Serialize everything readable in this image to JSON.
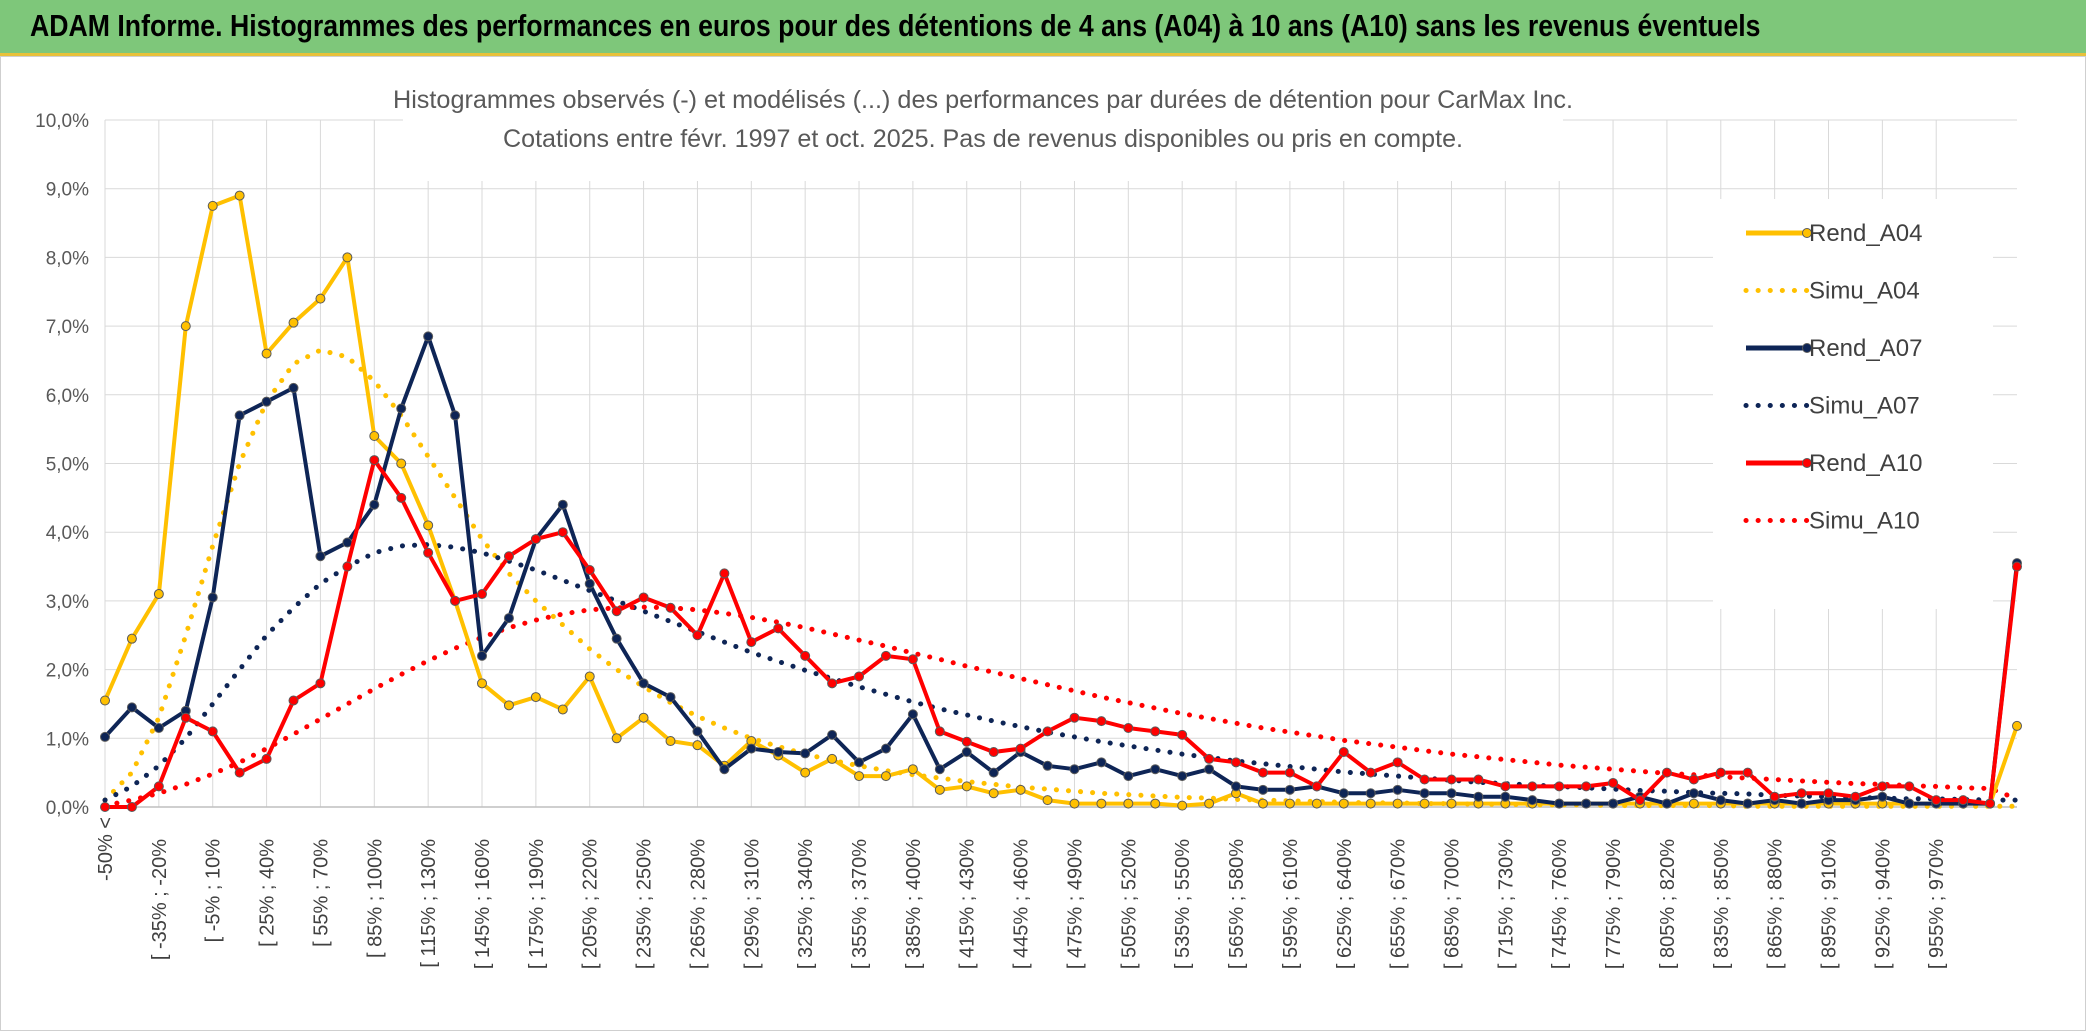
{
  "banner": {
    "title": "ADAM Informe. Histogrammes des performances en euros pour des détentions de 4 ans (A04) à 10 ans (A10) sans les revenus éventuels"
  },
  "colors": {
    "banner_bg": "#7ec77a",
    "A04": "#ffc000",
    "A07": "#0e2556",
    "A10": "#ff0000",
    "grid": "#d9d9d9"
  },
  "chart_data": {
    "type": "line",
    "title": "Histogrammes observés (-) et modélisés (...) des performances par durées de détention pour CarMax Inc.",
    "subtitle": "Cotations entre févr. 1997 et oct. 2025. Pas de revenus disponibles ou pris en compte.",
    "xlabel": "",
    "ylabel": "",
    "ylim": [
      0,
      10
    ],
    "y_ticks": [
      "0,0%",
      "1,0%",
      "2,0%",
      "3,0%",
      "4,0%",
      "5,0%",
      "6,0%",
      "7,0%",
      "8,0%",
      "9,0%",
      "10,0%"
    ],
    "grid": true,
    "legend_position": "right",
    "x_labels_shown": [
      "-50% <",
      "[ -35% ; -20%",
      "[ -5% ; 10%",
      "[ 25% ; 40%",
      "[ 55% ; 70%",
      "[ 85% ; 100%",
      "[ 115% ; 130%",
      "[ 145% ; 160%",
      "[ 175% ; 190%",
      "[ 205% ; 220%",
      "[ 235% ; 250%",
      "[ 265% ; 280%",
      "[ 295% ; 310%",
      "[ 325% ; 340%",
      "[ 355% ; 370%",
      "[ 385% ; 400%",
      "[ 415% ; 430%",
      "[ 445% ; 460%",
      "[ 475% ; 490%",
      "[ 505% ; 520%",
      "[ 535% ; 550%",
      "[ 565% ; 580%",
      "[ 595% ; 610%",
      "[ 625% ; 640%",
      "[ 655% ; 670%",
      "[ 685% ; 700%",
      "[ 715% ; 730%",
      "[ 745% ; 760%",
      "[ 775% ; 790%",
      "[ 805% ; 820%",
      "[ 835% ; 850%",
      "[ 865% ; 880%",
      "[ 895% ; 910%",
      "[ 925% ; 940%",
      "[ 955% ; 970%"
    ],
    "series": [
      {
        "name": "Rend_A04",
        "style": "solid",
        "markers": true,
        "color": "#ffc000",
        "values": [
          1.55,
          2.45,
          3.1,
          7.0,
          8.75,
          8.9,
          6.6,
          7.05,
          7.4,
          8.0,
          5.4,
          5.0,
          4.1,
          3.0,
          1.8,
          1.48,
          1.6,
          1.42,
          1.9,
          1.0,
          1.3,
          0.96,
          0.9,
          0.6,
          0.96,
          0.75,
          0.5,
          0.7,
          0.45,
          0.45,
          0.55,
          0.25,
          0.3,
          0.2,
          0.25,
          0.1,
          0.05,
          0.05,
          0.05,
          0.05,
          0.02,
          0.05,
          0.2,
          0.05,
          0.05,
          0.05,
          0.05,
          0.05,
          0.05,
          0.05,
          0.05,
          0.05,
          0.05,
          0.05,
          0.05,
          0.05,
          0.05,
          0.05,
          0.05,
          0.05,
          0.05,
          0.05,
          0.05,
          0.05,
          0.05,
          0.05,
          0.05,
          0.05,
          0.05,
          0.05,
          0.05,
          1.18
        ]
      },
      {
        "name": "Simu_A04",
        "style": "dotted",
        "markers": false,
        "color": "#ffc000",
        "values": [
          0.1,
          0.5,
          1.3,
          2.5,
          3.8,
          5.0,
          5.9,
          6.45,
          6.65,
          6.55,
          6.2,
          5.7,
          5.1,
          4.5,
          3.9,
          3.4,
          3.0,
          2.65,
          2.3,
          2.0,
          1.75,
          1.52,
          1.32,
          1.15,
          1.0,
          0.88,
          0.77,
          0.68,
          0.6,
          0.53,
          0.47,
          0.42,
          0.37,
          0.33,
          0.29,
          0.26,
          0.23,
          0.2,
          0.18,
          0.16,
          0.14,
          0.13,
          0.11,
          0.1,
          0.09,
          0.08,
          0.07,
          0.06,
          0.06,
          0.05,
          0.05,
          0.04,
          0.04,
          0.03,
          0.03,
          0.03,
          0.02,
          0.02,
          0.02,
          0.02,
          0.02,
          0.01,
          0.01,
          0.01,
          0.01,
          0.01,
          0.01,
          0.01,
          0.01,
          0.01,
          0.01,
          0.01
        ]
      },
      {
        "name": "Rend_A07",
        "style": "solid",
        "markers": true,
        "color": "#0e2556",
        "values": [
          1.02,
          1.45,
          1.15,
          1.4,
          3.05,
          5.7,
          5.9,
          6.1,
          3.65,
          3.85,
          4.4,
          5.8,
          6.85,
          5.7,
          2.2,
          2.75,
          3.9,
          4.4,
          3.25,
          2.45,
          1.8,
          1.6,
          1.1,
          0.55,
          0.85,
          0.8,
          0.78,
          1.05,
          0.65,
          0.85,
          1.35,
          0.55,
          0.8,
          0.5,
          0.8,
          0.6,
          0.55,
          0.65,
          0.45,
          0.55,
          0.45,
          0.55,
          0.3,
          0.25,
          0.25,
          0.3,
          0.2,
          0.2,
          0.25,
          0.2,
          0.2,
          0.15,
          0.15,
          0.1,
          0.05,
          0.05,
          0.05,
          0.15,
          0.05,
          0.2,
          0.1,
          0.05,
          0.1,
          0.05,
          0.1,
          0.1,
          0.15,
          0.05,
          0.05,
          0.05,
          0.05,
          3.55
        ]
      },
      {
        "name": "Simu_A07",
        "style": "dotted",
        "markers": false,
        "color": "#0e2556",
        "values": [
          0.1,
          0.3,
          0.6,
          1.0,
          1.5,
          2.0,
          2.5,
          2.9,
          3.25,
          3.5,
          3.7,
          3.8,
          3.82,
          3.78,
          3.7,
          3.58,
          3.45,
          3.3,
          3.15,
          3.0,
          2.85,
          2.7,
          2.55,
          2.4,
          2.25,
          2.12,
          1.99,
          1.87,
          1.75,
          1.64,
          1.53,
          1.43,
          1.34,
          1.25,
          1.17,
          1.09,
          1.02,
          0.95,
          0.89,
          0.83,
          0.77,
          0.72,
          0.67,
          0.63,
          0.59,
          0.55,
          0.51,
          0.48,
          0.45,
          0.42,
          0.39,
          0.36,
          0.34,
          0.32,
          0.3,
          0.28,
          0.26,
          0.24,
          0.23,
          0.21,
          0.2,
          0.19,
          0.17,
          0.16,
          0.15,
          0.14,
          0.13,
          0.12,
          0.12,
          0.11,
          0.1,
          0.1
        ]
      },
      {
        "name": "Rend_A10",
        "style": "solid",
        "markers": true,
        "color": "#ff0000",
        "values": [
          0.0,
          0.0,
          0.3,
          1.3,
          1.1,
          0.5,
          0.7,
          1.55,
          1.8,
          3.5,
          5.05,
          4.5,
          3.7,
          3.0,
          3.1,
          3.65,
          3.9,
          4.0,
          3.45,
          2.85,
          3.05,
          2.9,
          2.5,
          3.4,
          2.4,
          2.6,
          2.2,
          1.8,
          1.9,
          2.2,
          2.15,
          1.1,
          0.95,
          0.8,
          0.85,
          1.1,
          1.3,
          1.25,
          1.15,
          1.1,
          1.05,
          0.7,
          0.65,
          0.5,
          0.5,
          0.3,
          0.8,
          0.5,
          0.65,
          0.4,
          0.4,
          0.4,
          0.3,
          0.3,
          0.3,
          0.3,
          0.35,
          0.1,
          0.5,
          0.4,
          0.5,
          0.5,
          0.15,
          0.2,
          0.2,
          0.15,
          0.3,
          0.3,
          0.1,
          0.1,
          0.05,
          3.5
        ]
      },
      {
        "name": "Simu_A10",
        "style": "dotted",
        "markers": false,
        "color": "#ff0000",
        "values": [
          0.02,
          0.1,
          0.2,
          0.33,
          0.48,
          0.65,
          0.85,
          1.06,
          1.28,
          1.5,
          1.72,
          1.93,
          2.13,
          2.31,
          2.47,
          2.61,
          2.72,
          2.81,
          2.87,
          2.9,
          2.91,
          2.9,
          2.87,
          2.82,
          2.76,
          2.69,
          2.61,
          2.52,
          2.43,
          2.34,
          2.24,
          2.15,
          2.05,
          1.96,
          1.87,
          1.78,
          1.69,
          1.6,
          1.52,
          1.44,
          1.36,
          1.29,
          1.22,
          1.15,
          1.09,
          1.03,
          0.97,
          0.92,
          0.87,
          0.82,
          0.77,
          0.73,
          0.69,
          0.65,
          0.61,
          0.58,
          0.55,
          0.52,
          0.49,
          0.47,
          0.44,
          0.42,
          0.4,
          0.38,
          0.36,
          0.34,
          0.33,
          0.31,
          0.3,
          0.28,
          0.27,
          0.12
        ]
      }
    ]
  }
}
